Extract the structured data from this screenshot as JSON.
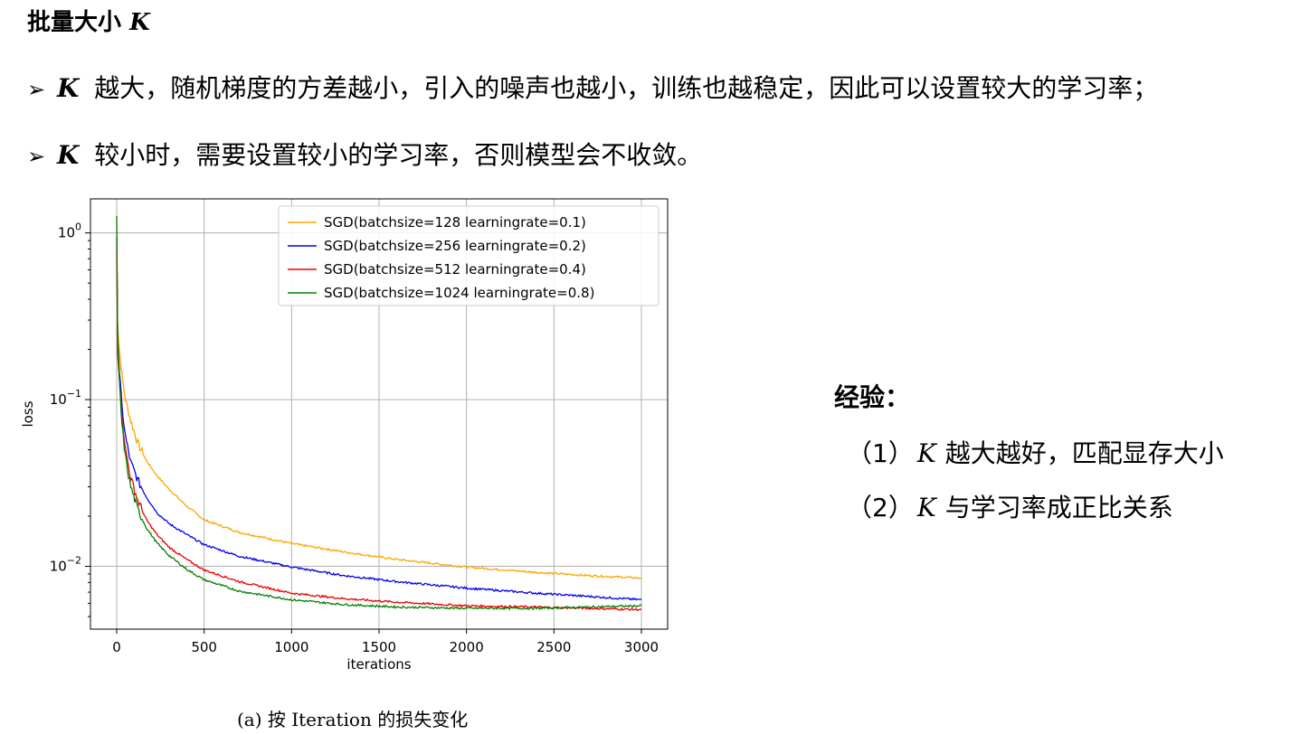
{
  "slide": {
    "title": "批量大小",
    "title_symbol": "K",
    "bullets": [
      {
        "arrow": "➢",
        "symbol": "K",
        "text": "越大，随机梯度的方差越小，引入的噪声也越小，训练也越稳定，因此可以设置较大的学习率；"
      },
      {
        "arrow": "➢",
        "symbol": "K",
        "text": "较小时，需要设置较小的学习率，否则模型会不收敛。"
      }
    ],
    "experience": {
      "title": "经验：",
      "items": [
        {
          "prefix": "（1）",
          "symbol": "K",
          "text": "越大越好，匹配显存大小"
        },
        {
          "prefix": "（2）",
          "symbol": "K",
          "text": "与学习率成正比关系"
        }
      ]
    },
    "caption": "(a) 按 Iteration 的损失变化"
  },
  "chart_data": {
    "type": "line",
    "title": "",
    "xlabel": "iterations",
    "ylabel": "loss",
    "xlim": [
      -150,
      3150
    ],
    "ylim": [
      0.0042,
      1.6
    ],
    "yscale": "log",
    "grid": true,
    "legend_position": "top-right",
    "xticks": [
      0,
      500,
      1000,
      1500,
      2000,
      2500,
      3000
    ],
    "yticks": [
      {
        "value": 1,
        "label_base": "10",
        "label_exp": "0"
      },
      {
        "value": 0.1,
        "label_base": "10",
        "label_exp": "−1"
      },
      {
        "value": 0.01,
        "label_base": "10",
        "label_exp": "−2"
      }
    ],
    "series": [
      {
        "name": "SGD(batchsize=128 learningrate=0.1)",
        "color": "#ffa500",
        "x": [
          0,
          5,
          15,
          30,
          50,
          80,
          120,
          170,
          230,
          300,
          400,
          500,
          700,
          1000,
          1300,
          1600,
          2000,
          2400,
          2700,
          3000
        ],
        "y": [
          1.25,
          0.3,
          0.2,
          0.14,
          0.1,
          0.075,
          0.055,
          0.043,
          0.035,
          0.029,
          0.023,
          0.019,
          0.016,
          0.0137,
          0.0122,
          0.011,
          0.0099,
          0.0092,
          0.0088,
          0.0085
        ]
      },
      {
        "name": "SGD(batchsize=256 learningrate=0.2)",
        "color": "#0000ee",
        "x": [
          0,
          5,
          15,
          30,
          50,
          80,
          120,
          170,
          230,
          300,
          400,
          500,
          700,
          1000,
          1300,
          1600,
          2000,
          2400,
          2700,
          3000
        ],
        "y": [
          0.9,
          0.25,
          0.15,
          0.09,
          0.06,
          0.042,
          0.033,
          0.026,
          0.021,
          0.018,
          0.0155,
          0.0135,
          0.0115,
          0.0099,
          0.0088,
          0.0081,
          0.0074,
          0.0069,
          0.0066,
          0.0063
        ]
      },
      {
        "name": "SGD(batchsize=512 learningrate=0.4)",
        "color": "#ee0000",
        "x": [
          0,
          5,
          15,
          30,
          50,
          80,
          120,
          170,
          230,
          300,
          400,
          500,
          700,
          1000,
          1300,
          1600,
          2000,
          2400,
          2700,
          3000
        ],
        "y": [
          0.8,
          0.2,
          0.14,
          0.08,
          0.05,
          0.034,
          0.025,
          0.019,
          0.0155,
          0.013,
          0.011,
          0.0095,
          0.0081,
          0.0069,
          0.0064,
          0.0061,
          0.0058,
          0.0057,
          0.0056,
          0.0055
        ]
      },
      {
        "name": "SGD(batchsize=1024 learningrate=0.8)",
        "color": "#008000",
        "x": [
          0,
          5,
          15,
          30,
          50,
          80,
          120,
          170,
          230,
          300,
          400,
          500,
          700,
          1000,
          1300,
          1600,
          2000,
          2400,
          2700,
          3000
        ],
        "y": [
          1.2,
          0.24,
          0.13,
          0.07,
          0.045,
          0.03,
          0.022,
          0.017,
          0.0138,
          0.0116,
          0.0096,
          0.0083,
          0.0071,
          0.0063,
          0.0059,
          0.0057,
          0.0056,
          0.0056,
          0.0057,
          0.0058
        ]
      }
    ]
  }
}
